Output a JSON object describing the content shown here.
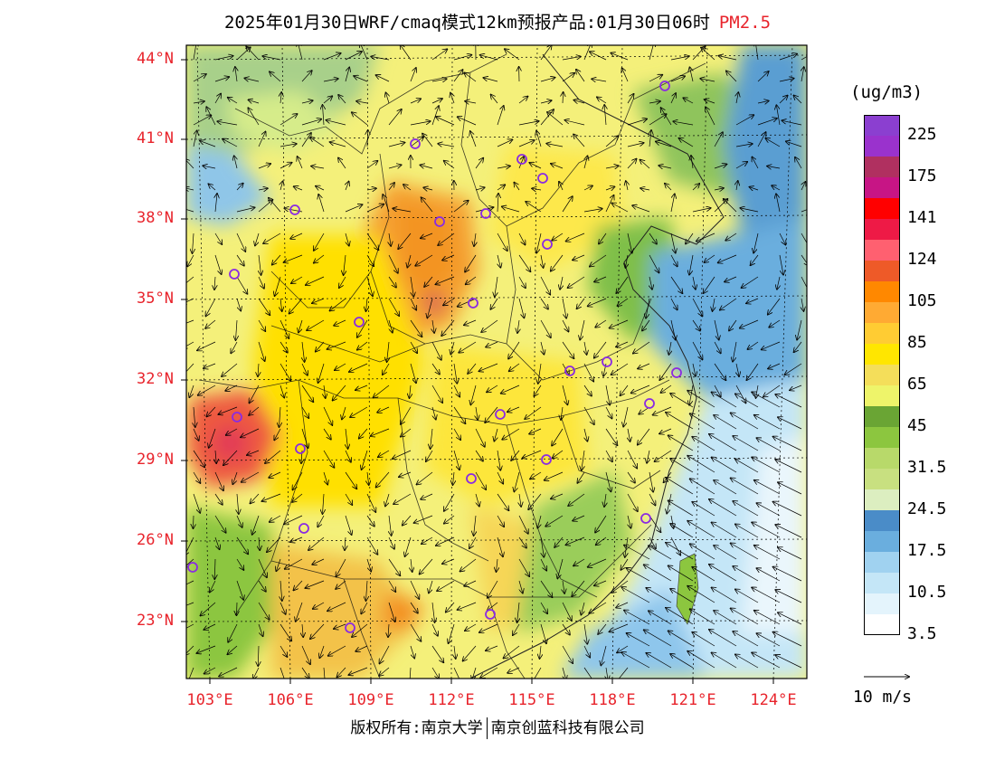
{
  "title": {
    "product": "2025年01月30日WRF/cmaq模式12km预报产品:01月30日06时",
    "species": "PM2.5"
  },
  "map": {
    "region": "East and South China",
    "lat_labels": [
      "44°N",
      "41°N",
      "38°N",
      "35°N",
      "32°N",
      "29°N",
      "26°N",
      "23°N"
    ],
    "lon_labels": [
      "103°E",
      "106°E",
      "109°E",
      "112°E",
      "115°E",
      "118°E",
      "121°E",
      "124°E"
    ],
    "label_color": "#e8242c"
  },
  "colorbar": {
    "unit": "(ug/m3)",
    "colors": [
      "#8b3fd0",
      "#9a32cd",
      "#b03060",
      "#c71585",
      "#ff0000",
      "#ee1a46",
      "#ff6070",
      "#ee5a28",
      "#ff8800",
      "#ffaa33",
      "#ffcc33",
      "#ffe600",
      "#f4de5a",
      "#eef46a",
      "#6aa534",
      "#8cc63f",
      "#b8d96a",
      "#c8e080",
      "#dceec0",
      "#4a8cc8",
      "#6aaede",
      "#a0d2f0",
      "#c4e6f7",
      "#e4f4fc",
      "#ffffff"
    ],
    "labels": [
      "225",
      "175",
      "141",
      "124",
      "105",
      "85",
      "65",
      "45",
      "31.5",
      "24.5",
      "17.5",
      "10.5",
      "3.5"
    ]
  },
  "wind_reference": "10 m/s",
  "footer": {
    "left": "版权所有:南京大学",
    "right": "南京创蓝科技有限公司"
  }
}
